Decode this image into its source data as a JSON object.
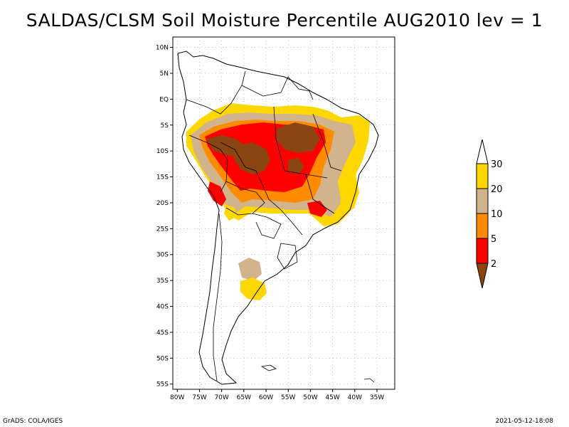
{
  "title": "SALDAS/CLSM Soil Moisture Percentile AUG2010 lev = 1",
  "lat_labels": [
    "10N",
    "5N",
    "EQ",
    "5S",
    "10S",
    "15S",
    "20S",
    "25S",
    "30S",
    "35S",
    "40S",
    "45S",
    "50S",
    "55S"
  ],
  "lon_labels": [
    "80W",
    "75W",
    "70W",
    "65W",
    "60W",
    "55W",
    "50W",
    "45W",
    "40W",
    "35W"
  ],
  "legend": {
    "labels": [
      "2",
      "5",
      "10",
      "20",
      "30"
    ],
    "colors": {
      "below_2": "#8B4513",
      "p2_5": "#FF0000",
      "p5_10": "#FF8C00",
      "p10_20": "#D2B48C",
      "p20_30": "#FFD700",
      "above_30": "#FFFFFF"
    }
  },
  "footer": {
    "left": "GrADS: COLA/IGES",
    "right": "2021-05-12-18:08"
  }
}
